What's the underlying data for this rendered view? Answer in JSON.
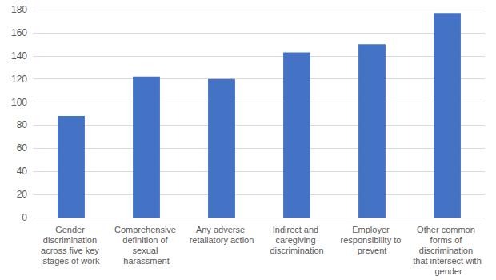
{
  "chart_data": {
    "type": "bar",
    "categories": [
      "Gender discrimination across five key stages of work",
      "Comprehensive definition of sexual harassment",
      "Any adverse retaliatory action",
      "Indirect and caregiving discrimination",
      "Employer responsibility to prevent",
      "Other common forms of discrimination that intersect with gender"
    ],
    "values": [
      88,
      122,
      120,
      143,
      150,
      177
    ],
    "color": "#4472c4",
    "ylim": [
      0,
      180
    ],
    "yticks": [
      0,
      20,
      40,
      60,
      80,
      100,
      120,
      140,
      160,
      180
    ],
    "grid": true
  }
}
